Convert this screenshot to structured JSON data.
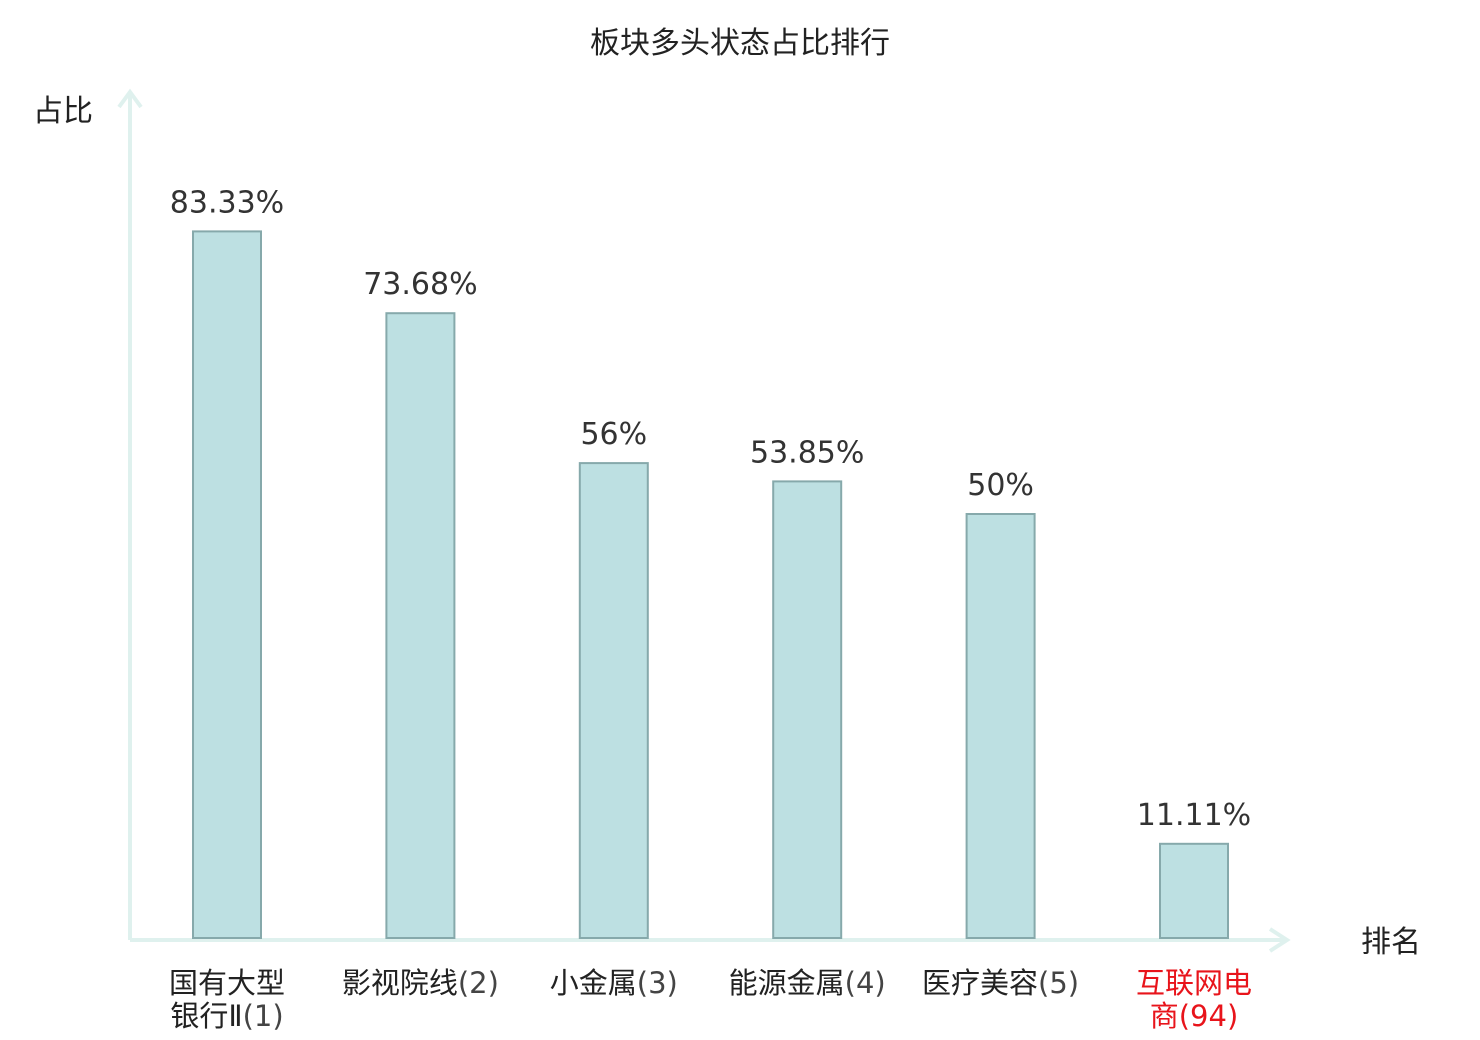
{
  "chart_data": {
    "type": "bar",
    "title": "板块多头状态占比排行",
    "ylabel": "占比",
    "xlabel": "排名",
    "categories": [
      {
        "name_lines": [
          "国有大型",
          "银行Ⅱ"
        ],
        "rank": "(1)",
        "highlight": false
      },
      {
        "name_lines": [
          "影视院线"
        ],
        "rank": "(2)",
        "highlight": false
      },
      {
        "name_lines": [
          "小金属"
        ],
        "rank": "(3)",
        "highlight": false
      },
      {
        "name_lines": [
          "能源金属"
        ],
        "rank": "(4)",
        "highlight": false
      },
      {
        "name_lines": [
          "医疗美容"
        ],
        "rank": "(5)",
        "highlight": false
      },
      {
        "name_lines": [
          "互联网电",
          "商"
        ],
        "rank": "(94)",
        "highlight": true
      }
    ],
    "values": [
      83.33,
      73.68,
      56,
      53.85,
      50,
      11.11
    ],
    "value_labels": [
      "83.33%",
      "73.68%",
      "56%",
      "53.85%",
      "50%",
      "11.11%"
    ],
    "ylim": [
      0,
      100
    ],
    "grid": false,
    "colors": {
      "bar_fill": "#bde0e2",
      "bar_stroke": "#86a9ab",
      "axis": "#dff1ee",
      "highlight_text": "#e8141b",
      "normal_text": "#222222",
      "rank_text": "#444444"
    }
  }
}
